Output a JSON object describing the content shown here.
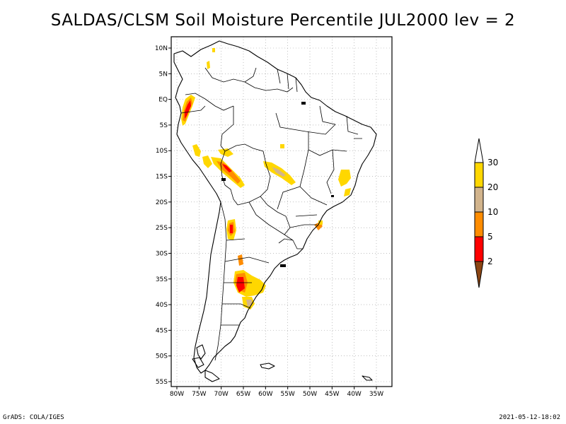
{
  "title": "SALDAS/CLSM Soil Moisture Percentile JUL2000 lev = 2",
  "footer": {
    "left": "GrADS: COLA/IGES",
    "right": "2021-05-12-18:02"
  },
  "map": {
    "region": "South America",
    "lon_range": [
      -81,
      -32
    ],
    "lat_range": [
      -56,
      11
    ],
    "lat_ticks": [
      {
        "value": 10,
        "label": "10N"
      },
      {
        "value": 5,
        "label": "5N"
      },
      {
        "value": 0,
        "label": "EQ"
      },
      {
        "value": -5,
        "label": "5S"
      },
      {
        "value": -10,
        "label": "10S"
      },
      {
        "value": -15,
        "label": "15S"
      },
      {
        "value": -20,
        "label": "20S"
      },
      {
        "value": -25,
        "label": "25S"
      },
      {
        "value": -30,
        "label": "30S"
      },
      {
        "value": -35,
        "label": "35S"
      },
      {
        "value": -40,
        "label": "40S"
      },
      {
        "value": -45,
        "label": "45S"
      },
      {
        "value": -50,
        "label": "50S"
      },
      {
        "value": -55,
        "label": "55S"
      }
    ],
    "lon_ticks": [
      {
        "value": -80,
        "label": "80W"
      },
      {
        "value": -75,
        "label": "75W"
      },
      {
        "value": -70,
        "label": "70W"
      },
      {
        "value": -65,
        "label": "65W"
      },
      {
        "value": -60,
        "label": "60W"
      },
      {
        "value": -55,
        "label": "55W"
      },
      {
        "value": -50,
        "label": "50W"
      },
      {
        "value": -45,
        "label": "45W"
      },
      {
        "value": -40,
        "label": "40W"
      },
      {
        "value": -35,
        "label": "35W"
      }
    ],
    "grid": true,
    "grid_style": "dotted"
  },
  "colorbar": {
    "labels": [
      "30",
      "20",
      "10",
      "5",
      "2"
    ],
    "bins": [
      {
        "color": "#8b4513",
        "range": "below 2"
      },
      {
        "color": "#ff0000",
        "range": "2-5"
      },
      {
        "color": "#ff8c00",
        "range": "5-10"
      },
      {
        "color": "#d2b48c",
        "range": "10-20"
      },
      {
        "color": "#ffd700",
        "range": "20-30"
      },
      {
        "color": "#ffffff",
        "range": "above 30"
      }
    ]
  }
}
